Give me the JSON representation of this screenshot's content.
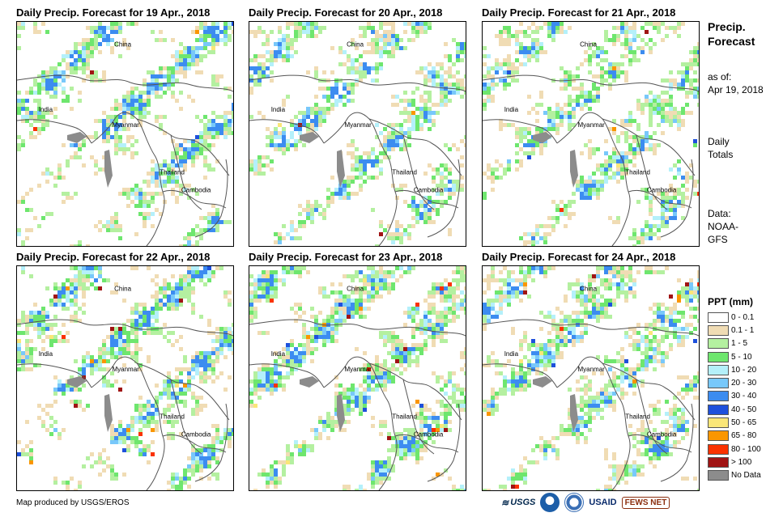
{
  "panels": [
    {
      "title": "Daily Precip. Forecast for 19 Apr., 2018",
      "seed": 11,
      "wet": 0.55,
      "heavy": 0.02
    },
    {
      "title": "Daily Precip. Forecast for 20 Apr., 2018",
      "seed": 23,
      "wet": 0.45,
      "heavy": 0.02
    },
    {
      "title": "Daily Precip. Forecast for 21 Apr., 2018",
      "seed": 37,
      "wet": 0.5,
      "heavy": 0.05
    },
    {
      "title": "Daily Precip. Forecast for 22 Apr., 2018",
      "seed": 41,
      "wet": 0.55,
      "heavy": 0.1
    },
    {
      "title": "Daily Precip. Forecast for 23 Apr., 2018",
      "seed": 53,
      "wet": 0.6,
      "heavy": 0.12
    },
    {
      "title": "Daily Precip. Forecast for 24 Apr., 2018",
      "seed": 67,
      "wet": 0.55,
      "heavy": 0.1
    }
  ],
  "map_labels": {
    "china": "China",
    "india": "India",
    "myanmar": "Myanmar",
    "thailand": "Thailand",
    "cambodia": "Cambodia"
  },
  "sidebar": {
    "title_line1": "Precip.",
    "title_line2": "Forecast",
    "asof_label": "as of:",
    "asof_date": "Apr 19, 2018",
    "daily_line1": "Daily",
    "daily_line2": "Totals",
    "data_line1": "Data:",
    "data_line2": "NOAA-",
    "data_line3": "GFS"
  },
  "legend": {
    "title": "PPT (mm)",
    "items": [
      {
        "label": "0 - 0.1",
        "color": "#ffffff"
      },
      {
        "label": "0.1 - 1",
        "color": "#f0dcb4"
      },
      {
        "label": "1 - 5",
        "color": "#b4f0a0"
      },
      {
        "label": "5 - 10",
        "color": "#6ee66e"
      },
      {
        "label": "10 - 20",
        "color": "#b4f0fa"
      },
      {
        "label": "20 - 30",
        "color": "#78c8fa"
      },
      {
        "label": "30 - 40",
        "color": "#3c8cf0"
      },
      {
        "label": "40 - 50",
        "color": "#1e50dc"
      },
      {
        "label": "50 - 65",
        "color": "#fae678"
      },
      {
        "label": "65 - 80",
        "color": "#fa9600"
      },
      {
        "label": "80 - 100",
        "color": "#fa3200"
      },
      {
        "label": "> 100",
        "color": "#a01414"
      },
      {
        "label": "No Data",
        "color": "#8c8c8c"
      }
    ]
  },
  "credit": "Map produced by USGS/EROS",
  "logos": {
    "usgs": "USGS",
    "usaid": "USAID",
    "fews": "FEWS NET"
  },
  "colors": {
    "border": "#000000",
    "coast": "#555555"
  }
}
